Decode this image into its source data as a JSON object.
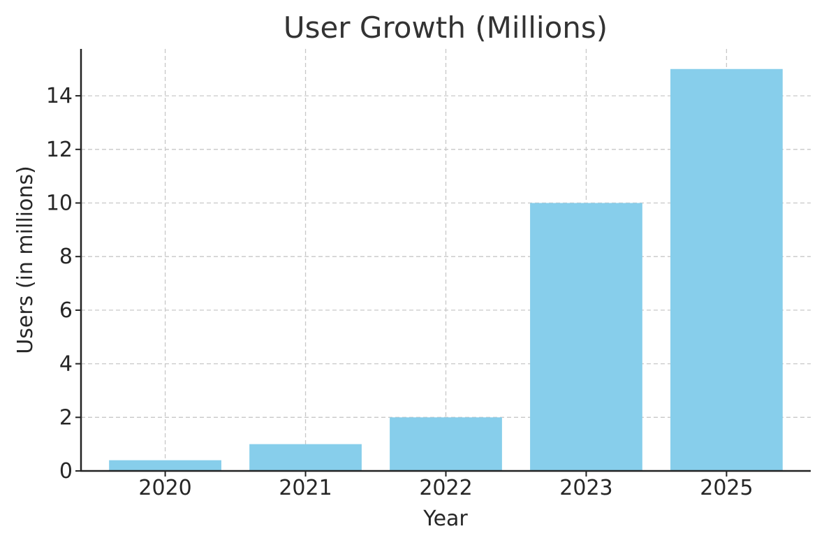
{
  "chart_data": {
    "type": "bar",
    "title": "User Growth (Millions)",
    "xlabel": "Year",
    "ylabel": "Users (in millions)",
    "categories": [
      "2020",
      "2021",
      "2022",
      "2023",
      "2025"
    ],
    "values": [
      0.4,
      1,
      2,
      10,
      15
    ],
    "ylim": [
      0,
      15.75
    ],
    "yticks": [
      0,
      2,
      4,
      6,
      8,
      10,
      12,
      14
    ],
    "ytick_labels": [
      "0",
      "2",
      "4",
      "6",
      "8",
      "10",
      "12",
      "14"
    ],
    "grid": true,
    "bar_color": "#87CEEB"
  }
}
